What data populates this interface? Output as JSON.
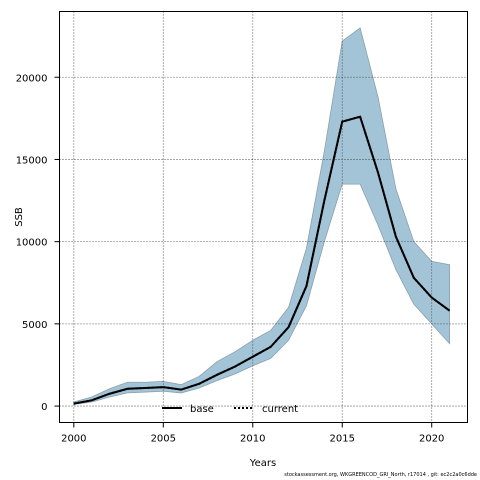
{
  "chart_data": {
    "type": "area",
    "xlabel": "Years",
    "ylabel": "SSB",
    "xlim": [
      1999.2,
      2022.0
    ],
    "ylim": [
      -1000,
      24000
    ],
    "xticks": [
      2000,
      2005,
      2010,
      2015,
      2020
    ],
    "yticks": [
      0,
      5000,
      10000,
      15000,
      20000
    ],
    "grid": true,
    "legend_position": "bottom-center",
    "x": [
      2000,
      2001,
      2002,
      2003,
      2004,
      2005,
      2006,
      2007,
      2008,
      2009,
      2010,
      2011,
      2012,
      2013,
      2014,
      2015,
      2016,
      2017,
      2018,
      2019,
      2020,
      2021
    ],
    "series": [
      {
        "name": "base",
        "style": "solid",
        "color": "#000000",
        "values": [
          150,
          350,
          750,
          1050,
          1100,
          1150,
          1000,
          1350,
          1900,
          2400,
          3000,
          3600,
          4800,
          7300,
          12500,
          17300,
          17600,
          14200,
          10300,
          7800,
          6600,
          5800
        ]
      },
      {
        "name": "current",
        "style": "dotted",
        "color": "#000000",
        "values": [
          150,
          350,
          750,
          1050,
          1100,
          1150,
          1000,
          1350,
          1900,
          2400,
          3000,
          3600,
          4800,
          7300,
          12500,
          17300,
          17600,
          14200,
          10300,
          7800,
          6600,
          5800
        ]
      }
    ],
    "confidence_band": {
      "color": "#a3c4d7",
      "lower": [
        100,
        250,
        550,
        800,
        850,
        900,
        800,
        1100,
        1550,
        1950,
        2450,
        2900,
        4000,
        6100,
        10000,
        13500,
        13500,
        11000,
        8300,
        6200,
        5000,
        3800
      ],
      "upper": [
        250,
        550,
        1050,
        1450,
        1450,
        1500,
        1300,
        1800,
        2700,
        3300,
        4000,
        4600,
        6000,
        9600,
        15500,
        22200,
        23000,
        18800,
        13200,
        10000,
        8800,
        8600
      ]
    }
  },
  "footer": "stockassessment.org, WKGREENCOD_GRI_North, r17014 , git: ec2c2a0c6dde"
}
